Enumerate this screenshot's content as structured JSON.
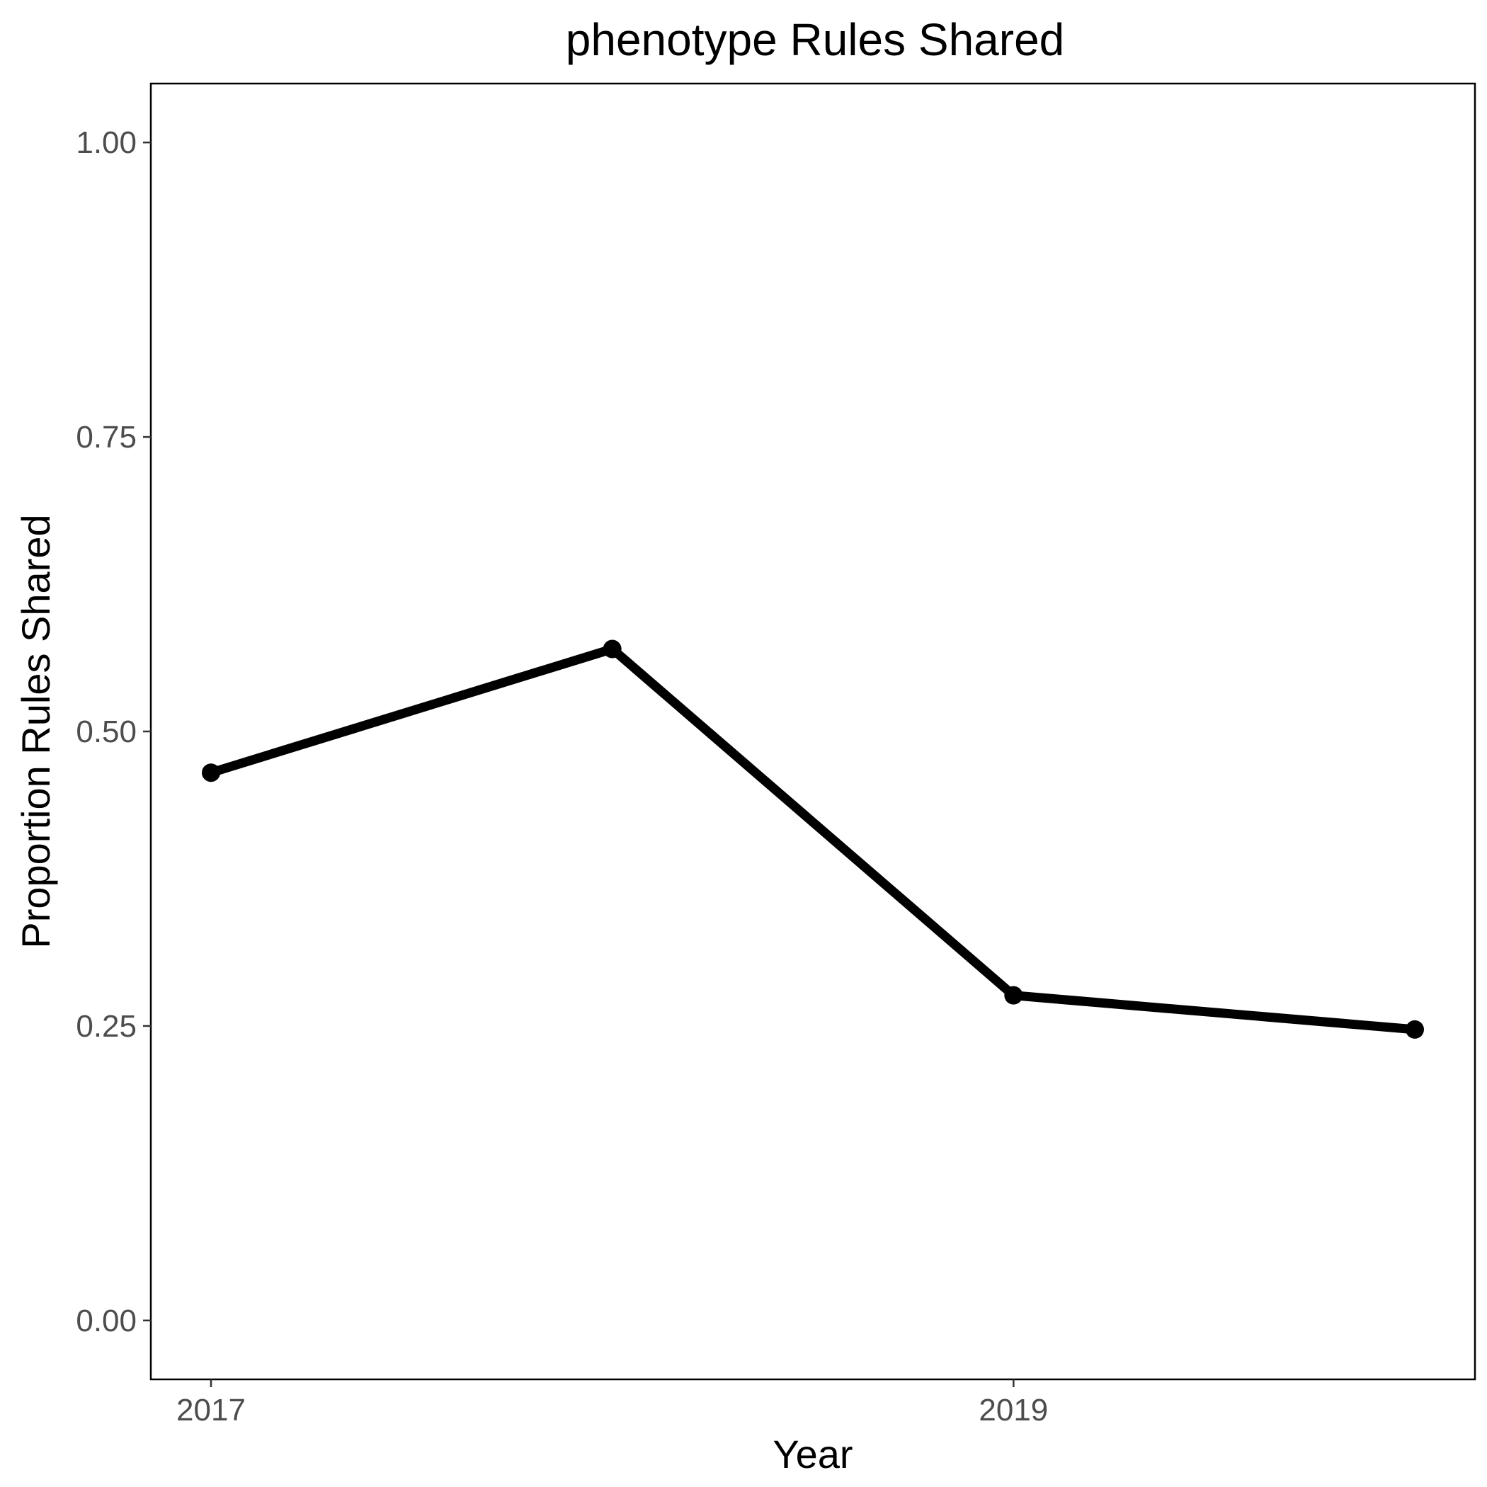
{
  "chart_data": {
    "type": "line",
    "title": "phenotype Rules Shared",
    "xlabel": "Year",
    "ylabel": "Proportion Rules Shared",
    "x": [
      2017,
      2018,
      2019,
      2020
    ],
    "series": [
      {
        "values": [
          0.465,
          0.57,
          0.276,
          0.247
        ]
      }
    ],
    "xlim": [
      2016.85,
      2020.15
    ],
    "ylim": [
      -0.05,
      1.05
    ],
    "xticks": [
      2017,
      2019
    ],
    "xtick_labels": [
      "2017",
      "2019"
    ],
    "yticks": [
      0,
      0.25,
      0.5,
      0.75,
      1
    ],
    "ytick_labels": [
      "0.00",
      "0.25",
      "0.50",
      "0.75",
      "1.00"
    ],
    "grid": false,
    "legend": "none",
    "line_color": "#000000",
    "point_color": "#000000"
  }
}
